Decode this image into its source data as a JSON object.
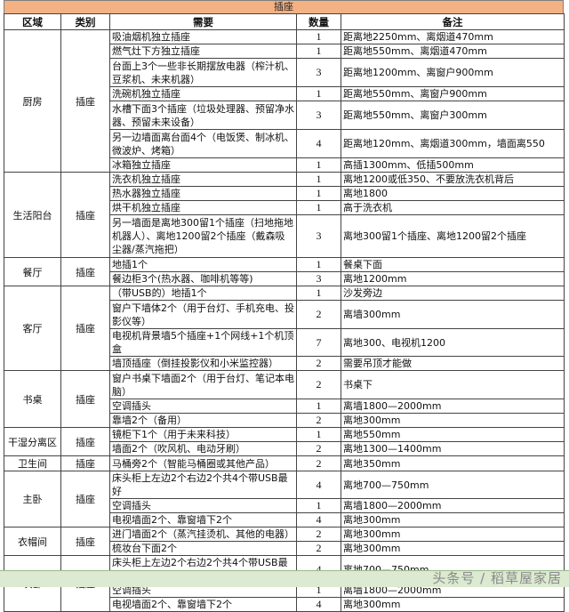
{
  "title": "插座",
  "headers": [
    "区域",
    "类别",
    "需要",
    "数量",
    "备注"
  ],
  "colors": {
    "title_bg": "#f4b183",
    "footer_bg": "#dbead0"
  },
  "groups": [
    {
      "area": "厨房",
      "type": "插座",
      "rows": [
        {
          "need": "吸油烟机独立插座",
          "qty": "1",
          "note": "距离地2250mm、离烟道470mm",
          "lines": 1
        },
        {
          "need": "燃气灶下方独立插座",
          "qty": "1",
          "note": "距离地550mm、离烟道470mm",
          "lines": 1
        },
        {
          "need": "台面上3个一些非长期摆放电器（榨汁机、豆浆机、未来机器）",
          "qty": "3",
          "note": "距离地1200mm、离窗户900mm",
          "lines": 2
        },
        {
          "need": "洗碗机独立插座",
          "qty": "1",
          "note": "距离地550mm、离窗户900mm",
          "lines": 1
        },
        {
          "need": "水槽下面3个插座（垃圾处理器、预留净水器、预留未来设备）",
          "qty": "3",
          "note": "距离地550mm、离窗户300mm",
          "lines": 2
        },
        {
          "need": "另一边墙面离台面4个（电饭煲、制冰机、微波炉、烤箱）",
          "qty": "4",
          "note": "距离地120mm、离烟道300mm，墙面离550",
          "lines": 2
        },
        {
          "need": "冰箱独立插座",
          "qty": "1",
          "note": "高插1300mm、低插500mm",
          "lines": 1
        }
      ]
    },
    {
      "area": "生活阳台",
      "type": "插座",
      "rows": [
        {
          "need": "洗衣机独立插座",
          "qty": "1",
          "note": "离地1200或低350、不要放洗衣机背后",
          "lines": 1
        },
        {
          "need": "热水器独立插座",
          "qty": "1",
          "note": "离地1800",
          "lines": 1
        },
        {
          "need": "烘干机独立插座",
          "qty": "1",
          "note": "高于洗衣机",
          "lines": 1
        },
        {
          "need": "另一墙面是离地300留1个插座（扫地拖地机器人）、离地1200留2个插座（戴森吸尘器/蒸汽拖把）",
          "qty": "3",
          "note": "离地300留1个插座、离地1200留2个插座",
          "lines": 3
        }
      ]
    },
    {
      "area": "餐厅",
      "type": "插座",
      "rows": [
        {
          "need": "地插1个",
          "qty": "1",
          "note": "餐桌下面",
          "lines": 1
        },
        {
          "need": "餐边柜3个(热水器、咖啡机等等)",
          "qty": "3",
          "note": "离地1200mm",
          "lines": 1
        }
      ]
    },
    {
      "area": "客厅",
      "type": "插座",
      "rows": [
        {
          "need": "（带USB的）地插1个",
          "qty": "1",
          "note": "沙发旁边",
          "lines": 1
        },
        {
          "need": "窗户下墙体2个（用于台灯、手机充电、投影仪等）",
          "qty": "2",
          "note": "离墙300mm",
          "lines": 2
        },
        {
          "need": "电视机背景墙5个插座+1个网线+1个机顶盒",
          "qty": "7",
          "note": "离地300、电视机1200",
          "lines": 1
        },
        {
          "need": "墙顶插座（倒挂投影仪和小米监控器）",
          "qty": "2",
          "note": "需要吊顶才能做",
          "lines": 1
        }
      ]
    },
    {
      "area": "书桌",
      "type": "插座",
      "rows": [
        {
          "need": "窗户书桌下墙面2个（用于台灯、笔记本电脑）",
          "qty": "2",
          "note": "书桌下",
          "lines": 2
        },
        {
          "need": "空调插头",
          "qty": "1",
          "note": "离墙1800—2000mm",
          "lines": 1
        },
        {
          "need": "靠墙2个（备用）",
          "qty": "2",
          "note": "离地300mm",
          "lines": 1
        }
      ]
    },
    {
      "area": "干湿分离区",
      "type": "插座",
      "rows": [
        {
          "need": "镜柜下1个（用于未来科技）",
          "qty": "1",
          "note": "离地550mm",
          "lines": 1
        },
        {
          "need": "墙面2个（吹风机、电动牙刷）",
          "qty": "2",
          "note": "离地1300—1400mm",
          "lines": 1
        }
      ]
    },
    {
      "area": "卫生间",
      "type": "插座",
      "rows": [
        {
          "need": "马桶旁2个（智能马桶圈或其他产品）",
          "qty": "2",
          "note": "离地350mm",
          "lines": 1
        }
      ]
    },
    {
      "area": "主卧",
      "type": "插座",
      "rows": [
        {
          "need": "床头柜上左边2个右边2个共4个带USB最好",
          "qty": "4",
          "note": "离地700—750mm",
          "lines": 1
        },
        {
          "need": "空调插头",
          "qty": "1",
          "note": "离墙1800—2000mm",
          "lines": 1
        },
        {
          "need": "电视墙面2个、靠窗墙下2个",
          "qty": "4",
          "note": "离地300mm",
          "lines": 1
        }
      ]
    },
    {
      "area": "衣帽间",
      "type": "插座",
      "rows": [
        {
          "need": "进门墙面2个（蒸汽挂烫机、其他的电器）",
          "qty": "2",
          "note": "离地300mm",
          "lines": 1
        },
        {
          "need": "梳妆台下面2个",
          "qty": "2",
          "note": "离地300mm",
          "lines": 1
        }
      ]
    },
    {
      "area": "次卧",
      "type": "插座",
      "rows": [
        {
          "need": "床头柜上左边2个右边2个共4个带USB最好",
          "qty": "4",
          "note": "离地700—750mm",
          "lines": 1
        },
        {
          "need": "空调插头",
          "qty": "1",
          "note": "离墙1800—2000mm",
          "lines": 1
        },
        {
          "need": "电视墙面2个、靠窗墙下2个",
          "qty": "4",
          "note": "离地300mm",
          "lines": 1
        }
      ]
    }
  ],
  "watermark": "头条号 / 稻草屋家居"
}
